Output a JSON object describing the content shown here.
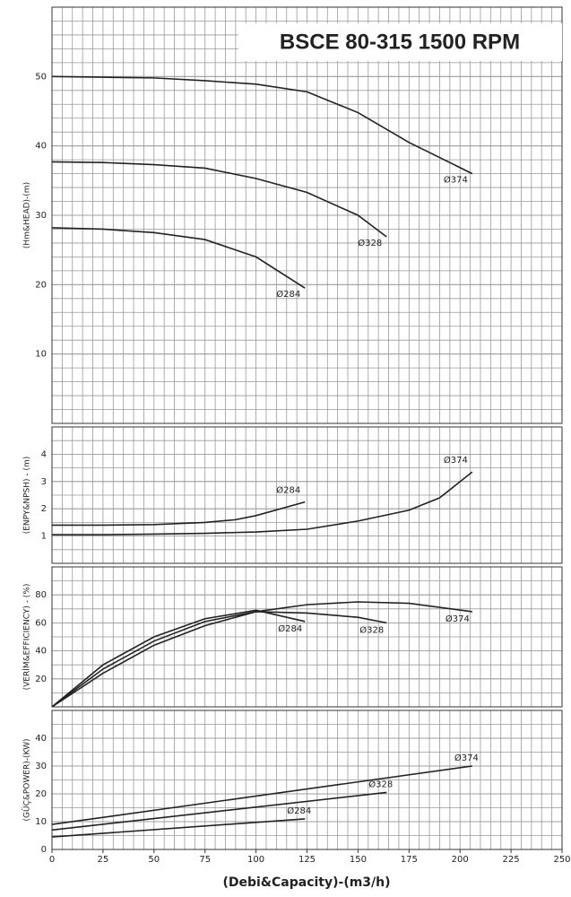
{
  "title": "BSCE 80-315 1500 RPM",
  "x_label": "(Debi&Capacity)-(m3/h)",
  "chart_data": [
    {
      "type": "line",
      "y_label": "(Hm&HEAD)-(m)",
      "xlim": [
        0,
        250
      ],
      "ylim": [
        0,
        60
      ],
      "yticks": [
        10,
        20,
        30,
        40,
        50
      ],
      "grid": true,
      "series": [
        {
          "name": "Ø374",
          "color": "#222222",
          "x": [
            0,
            25,
            50,
            75,
            100,
            125,
            150,
            175,
            206
          ],
          "values": [
            50,
            49.9,
            49.8,
            49.4,
            48.9,
            47.8,
            44.8,
            40.5,
            36
          ]
        },
        {
          "name": "Ø328",
          "color": "#222222",
          "x": [
            0,
            25,
            50,
            75,
            100,
            125,
            150,
            164
          ],
          "values": [
            37.7,
            37.6,
            37.3,
            36.8,
            35.3,
            33.3,
            30,
            26.9
          ]
        },
        {
          "name": "Ø284",
          "color": "#222222",
          "x": [
            0,
            25,
            50,
            75,
            100,
            124
          ],
          "values": [
            28.2,
            28,
            27.5,
            26.5,
            24,
            19.5
          ]
        }
      ]
    },
    {
      "type": "line",
      "y_label": "(ENPY&NPSH) - (m)",
      "xlim": [
        0,
        250
      ],
      "ylim": [
        0,
        5
      ],
      "yticks": [
        1,
        2,
        3,
        4
      ],
      "grid": true,
      "series": [
        {
          "name": "Ø284",
          "color": "#222222",
          "x": [
            0,
            25,
            50,
            75,
            90,
            100,
            124
          ],
          "values": [
            1.4,
            1.4,
            1.42,
            1.5,
            1.6,
            1.75,
            2.25
          ]
        },
        {
          "name": "Ø374",
          "color": "#222222",
          "x": [
            0,
            25,
            50,
            75,
            100,
            125,
            150,
            175,
            190,
            206
          ],
          "values": [
            1.05,
            1.05,
            1.07,
            1.1,
            1.15,
            1.25,
            1.55,
            1.95,
            2.4,
            3.35
          ]
        }
      ]
    },
    {
      "type": "line",
      "y_label": "(VERİM&EFFICIENCY) - (%)",
      "xlim": [
        0,
        250
      ],
      "ylim": [
        0,
        100
      ],
      "yticks": [
        20,
        40,
        60,
        80
      ],
      "grid": true,
      "series": [
        {
          "name": "Ø284",
          "color": "#222222",
          "x": [
            0,
            25,
            50,
            75,
            100,
            124
          ],
          "values": [
            0,
            30,
            50,
            63,
            69,
            61
          ]
        },
        {
          "name": "Ø328",
          "color": "#222222",
          "x": [
            0,
            25,
            50,
            75,
            100,
            125,
            150,
            164
          ],
          "values": [
            0,
            27,
            47,
            61,
            68,
            67,
            64,
            60
          ]
        },
        {
          "name": "Ø374",
          "color": "#222222",
          "x": [
            0,
            25,
            50,
            75,
            100,
            125,
            150,
            175,
            206
          ],
          "values": [
            0,
            24,
            44,
            58,
            68,
            73,
            75,
            74,
            68
          ]
        }
      ]
    },
    {
      "type": "line",
      "y_label": "(GÜÇ&POWER)-(KW)",
      "xlim": [
        0,
        250
      ],
      "ylim": [
        0,
        50
      ],
      "yticks": [
        0,
        10,
        20,
        30,
        40
      ],
      "xticks": [
        0,
        25,
        50,
        75,
        100,
        125,
        150,
        175,
        200,
        225,
        250
      ],
      "grid": true,
      "series": [
        {
          "name": "Ø374",
          "color": "#222222",
          "x": [
            0,
            206
          ],
          "values": [
            9,
            30
          ]
        },
        {
          "name": "Ø328",
          "color": "#222222",
          "x": [
            0,
            164
          ],
          "values": [
            7,
            20.5
          ]
        },
        {
          "name": "Ø284",
          "color": "#222222",
          "x": [
            0,
            124
          ],
          "values": [
            4.5,
            11
          ]
        }
      ]
    }
  ]
}
